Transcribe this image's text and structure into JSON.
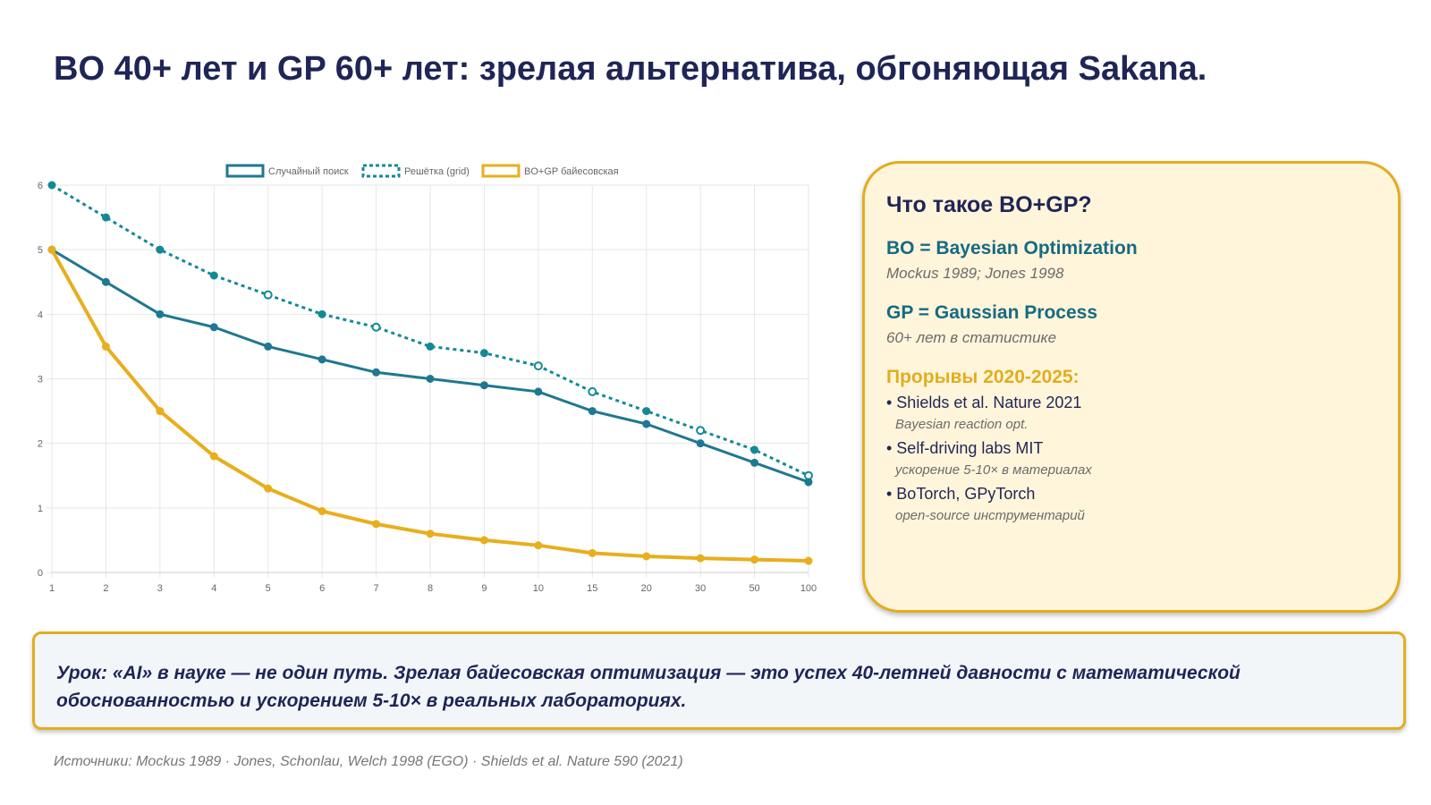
{
  "title": "BO 40+ лет и GP 60+ лет: зрелая альтернатива, обгоняющая Sakana.",
  "chart_data": {
    "type": "line",
    "categories": [
      "1",
      "2",
      "3",
      "4",
      "5",
      "6",
      "7",
      "8",
      "9",
      "10",
      "15",
      "20",
      "30",
      "50",
      "100"
    ],
    "ylim": [
      0,
      6
    ],
    "yticks": [
      0,
      1,
      2,
      3,
      4,
      5,
      6
    ],
    "grid": true,
    "legend_position": "top-center",
    "series": [
      {
        "name": "Случайный поиск",
        "style": "solid",
        "color": "#1f7891",
        "values": [
          5,
          4.5,
          4,
          3.8,
          3.5,
          3.3,
          3.1,
          3,
          2.9,
          2.8,
          2.5,
          2.3,
          2,
          1.7,
          1.4
        ]
      },
      {
        "name": "Решётка (grid)",
        "style": "dotted",
        "color": "#128a96",
        "values": [
          6,
          5.5,
          5,
          4.6,
          4.3,
          4,
          3.8,
          3.5,
          3.4,
          3.2,
          2.8,
          2.5,
          2.2,
          1.9,
          1.5
        ]
      },
      {
        "name": "BO+GP байесовская",
        "style": "solid",
        "color": "#e8ae1c",
        "values": [
          5,
          3.5,
          2.5,
          1.8,
          1.3,
          0.95,
          0.75,
          0.6,
          0.5,
          0.42,
          0.3,
          0.25,
          0.22,
          0.2,
          0.18
        ]
      }
    ]
  },
  "panel": {
    "title": "Что такое BO+GP?",
    "bo_head": "BO = Bayesian Optimization",
    "bo_sub": "Mockus 1989; Jones 1998",
    "gp_head": "GP = Gaussian Process",
    "gp_sub": "60+ лет в статистике",
    "breakthroughs_head": "Прорывы 2020-2025:",
    "items": [
      {
        "main": "• Shields et al. Nature 2021",
        "sub": "Bayesian reaction opt."
      },
      {
        "main": "• Self-driving labs MIT",
        "sub": "ускорение 5-10× в материалах"
      },
      {
        "main": "• BoTorch, GPyTorch",
        "sub": "open-source инструментарий"
      }
    ]
  },
  "lesson": "Урок: «AI» в науке — не один путь. Зрелая байесовская оптимизация — это успех 40-летней давности с математической обоснованностью и ускорением 5-10× в реальных лабораториях.",
  "sources": "Источники: Mockus 1989 · Jones, Schonlau, Welch 1998 (EGO) · Shields et al. Nature 590 (2021)",
  "colors": {
    "title": "#1f2556",
    "accent_gold": "#e2ad1f",
    "accent_teal": "#176a82",
    "panel_bg": "#fff5db",
    "lesson_bg": "#f3f6f9"
  }
}
